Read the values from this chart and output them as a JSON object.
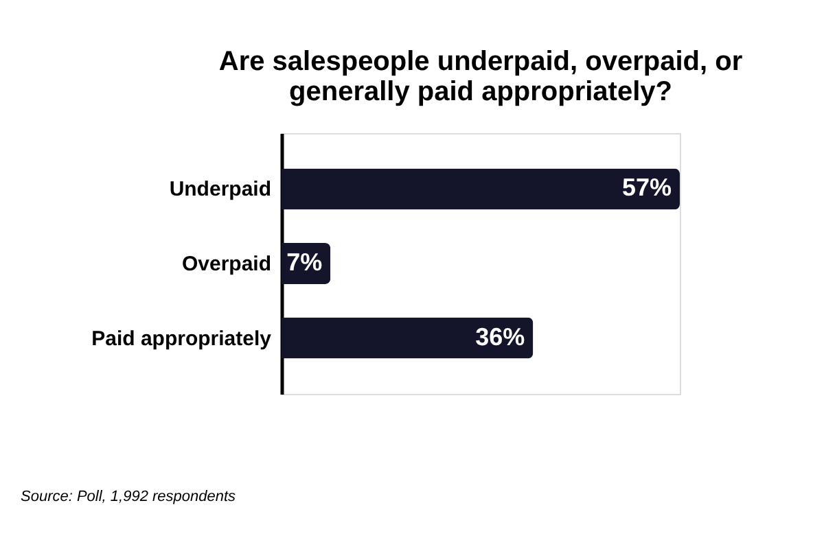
{
  "chart_data": {
    "type": "bar",
    "orientation": "horizontal",
    "title": [
      "Are salespeople underpaid, overpaid, or",
      "generally paid appropriately?"
    ],
    "categories": [
      "Underpaid",
      "Overpaid",
      "Paid appropriately"
    ],
    "values": [
      57,
      7,
      36
    ],
    "color": "#14142b",
    "value_labels": [
      "57%",
      "7%",
      "36%"
    ],
    "annotations": [
      "Source: Poll, 1,992 respondents"
    ]
  }
}
